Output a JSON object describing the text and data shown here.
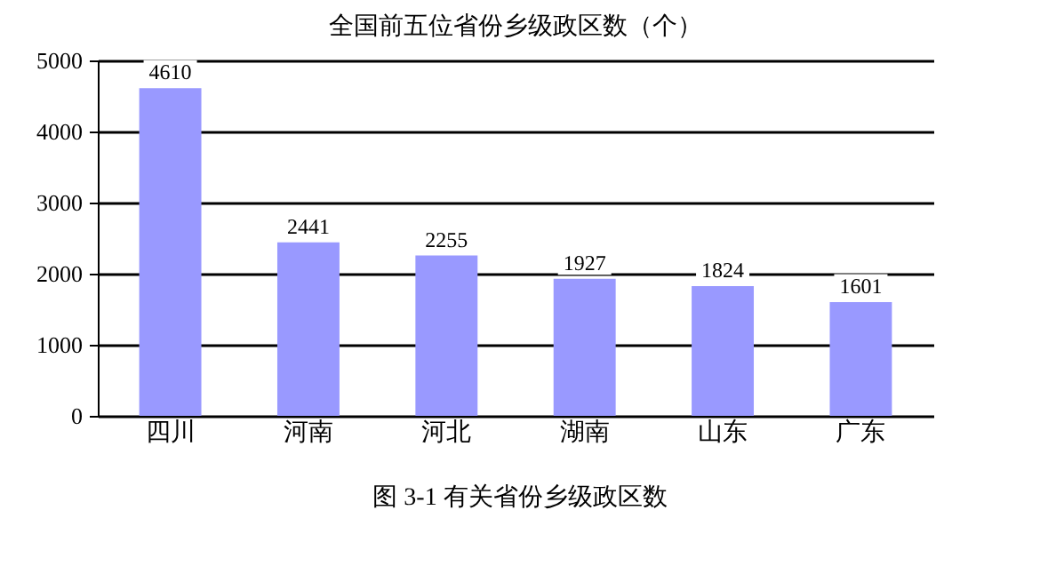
{
  "chart_data": {
    "type": "bar",
    "title": "全国前五位省份乡级政区数（个）",
    "categories": [
      "四川",
      "河南",
      "河北",
      "湖南",
      "山东",
      "广东"
    ],
    "values": [
      4610,
      2441,
      2255,
      1927,
      1824,
      1601
    ],
    "color": "#9999ff",
    "ylim": [
      0,
      5000
    ],
    "yticks": [
      0,
      1000,
      2000,
      3000,
      4000,
      5000
    ],
    "grid": "y",
    "data_labels": true,
    "annotations": [
      "图 3-1  有关省份乡级政区数"
    ]
  }
}
